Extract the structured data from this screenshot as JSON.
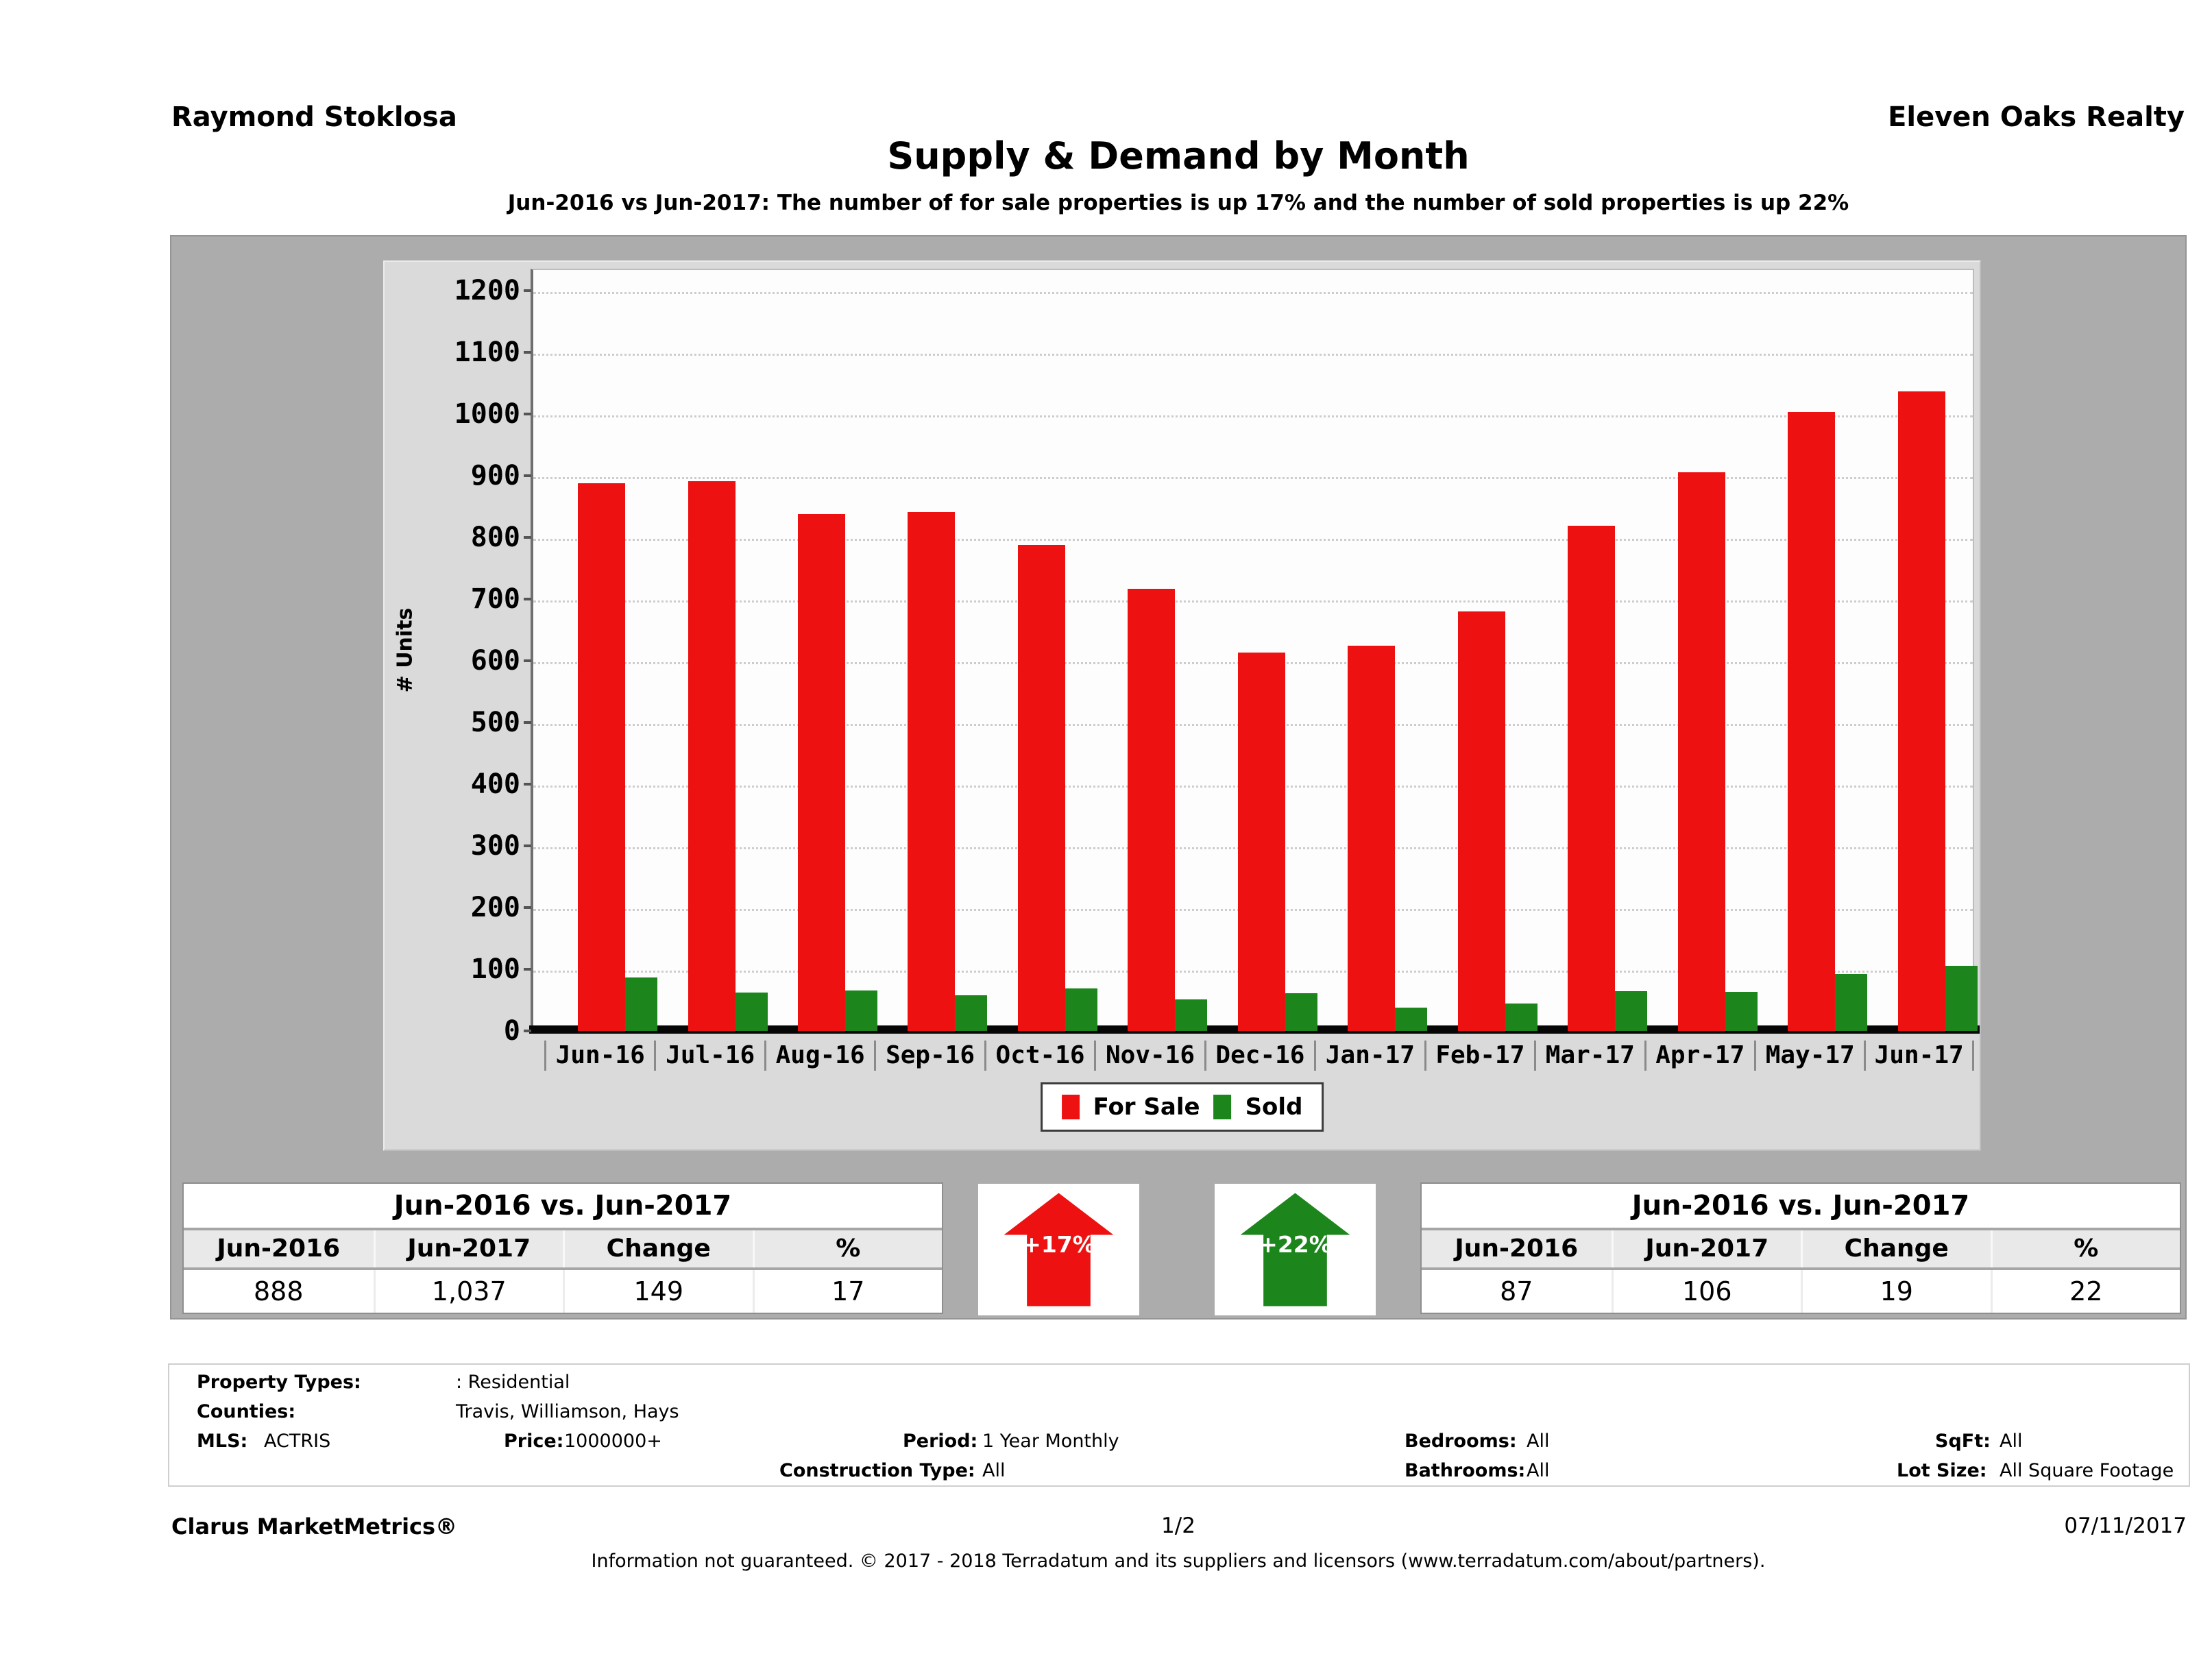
{
  "header": {
    "agent": "Raymond Stoklosa",
    "company": "Eleven Oaks Realty",
    "title": "Supply & Demand by Month",
    "subtitle": "Jun-2016 vs Jun-2017: The number of for sale properties is up 17% and the number of sold properties is up 22%"
  },
  "chart_data": {
    "type": "bar",
    "title": "Supply & Demand by Month",
    "xlabel": "",
    "ylabel": "# Units",
    "ylim": [
      0,
      1200
    ],
    "ytick_step": 100,
    "grid": "horizontal-dotted",
    "legend_position": "bottom-center",
    "categories": [
      "Jun-16",
      "Jul-16",
      "Aug-16",
      "Sep-16",
      "Oct-16",
      "Nov-16",
      "Dec-16",
      "Jan-17",
      "Feb-17",
      "Mar-17",
      "Apr-17",
      "May-17",
      "Jun-17"
    ],
    "series": [
      {
        "name": "For Sale",
        "color": "#ee1111",
        "values": [
          888,
          891,
          838,
          841,
          788,
          717,
          613,
          625,
          680,
          819,
          906,
          1003,
          1037
        ]
      },
      {
        "name": "Sold",
        "color": "#1c861c",
        "values": [
          87,
          62,
          66,
          58,
          69,
          51,
          61,
          38,
          44,
          65,
          63,
          92,
          106
        ]
      }
    ]
  },
  "comparison_tables": {
    "left": {
      "title": "Jun-2016 vs. Jun-2017",
      "columns": [
        "Jun-2016",
        "Jun-2017",
        "Change",
        "%"
      ],
      "values": [
        "888",
        "1,037",
        "149",
        "17"
      ]
    },
    "right": {
      "title": "Jun-2016 vs. Jun-2017",
      "columns": [
        "Jun-2016",
        "Jun-2017",
        "Change",
        "%"
      ],
      "values": [
        "87",
        "106",
        "19",
        "22"
      ]
    }
  },
  "indicators": {
    "for_sale_change": "+17%",
    "sold_change": "+22%"
  },
  "property_info": {
    "property_types_label": "Property Types:",
    "property_types_value": ": Residential",
    "counties_label": "Counties:",
    "counties_value": "Travis, Williamson, Hays",
    "mls_label": "MLS:",
    "mls_value": "ACTRIS",
    "price_label": "Price:",
    "price_value": "1000000+",
    "period_label": "Period:",
    "period_value": "1 Year Monthly",
    "bedrooms_label": "Bedrooms:",
    "bedrooms_value": "All",
    "sqft_label": "SqFt:",
    "sqft_value": "All",
    "construction_label": "Construction Type:",
    "construction_value": "All",
    "bathrooms_label": "Bathrooms:",
    "bathrooms_value": "All",
    "lotsize_label": "Lot Size:",
    "lotsize_value": "All Square Footage"
  },
  "footer": {
    "product": "Clarus MarketMetrics®",
    "page": "1/2",
    "date": "07/11/2017",
    "disclaimer": "Information not guaranteed. © 2017 - 2018 Terradatum and its suppliers and licensors (www.terradatum.com/about/partners)."
  }
}
